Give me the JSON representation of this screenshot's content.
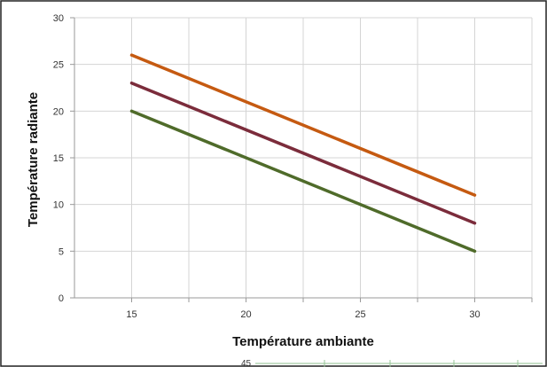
{
  "chart_data": {
    "type": "line",
    "title": "",
    "xlabel": "Température ambiante",
    "ylabel": "Température radiante",
    "x": [
      15,
      30
    ],
    "xticks": [
      15,
      20,
      25,
      30
    ],
    "yticks": [
      0,
      5,
      10,
      15,
      20,
      25,
      30
    ],
    "xlim": [
      12.5,
      32.5
    ],
    "ylim": [
      0,
      30
    ],
    "grid": true,
    "legend": "none",
    "series": [
      {
        "values": [
          26,
          11
        ],
        "color": "#C55A11"
      },
      {
        "values": [
          23,
          8
        ],
        "color": "#7B2C3B"
      },
      {
        "values": [
          20,
          5
        ],
        "color": "#4F6B2A"
      }
    ]
  },
  "below_chart": {
    "peek_tick": "45"
  }
}
